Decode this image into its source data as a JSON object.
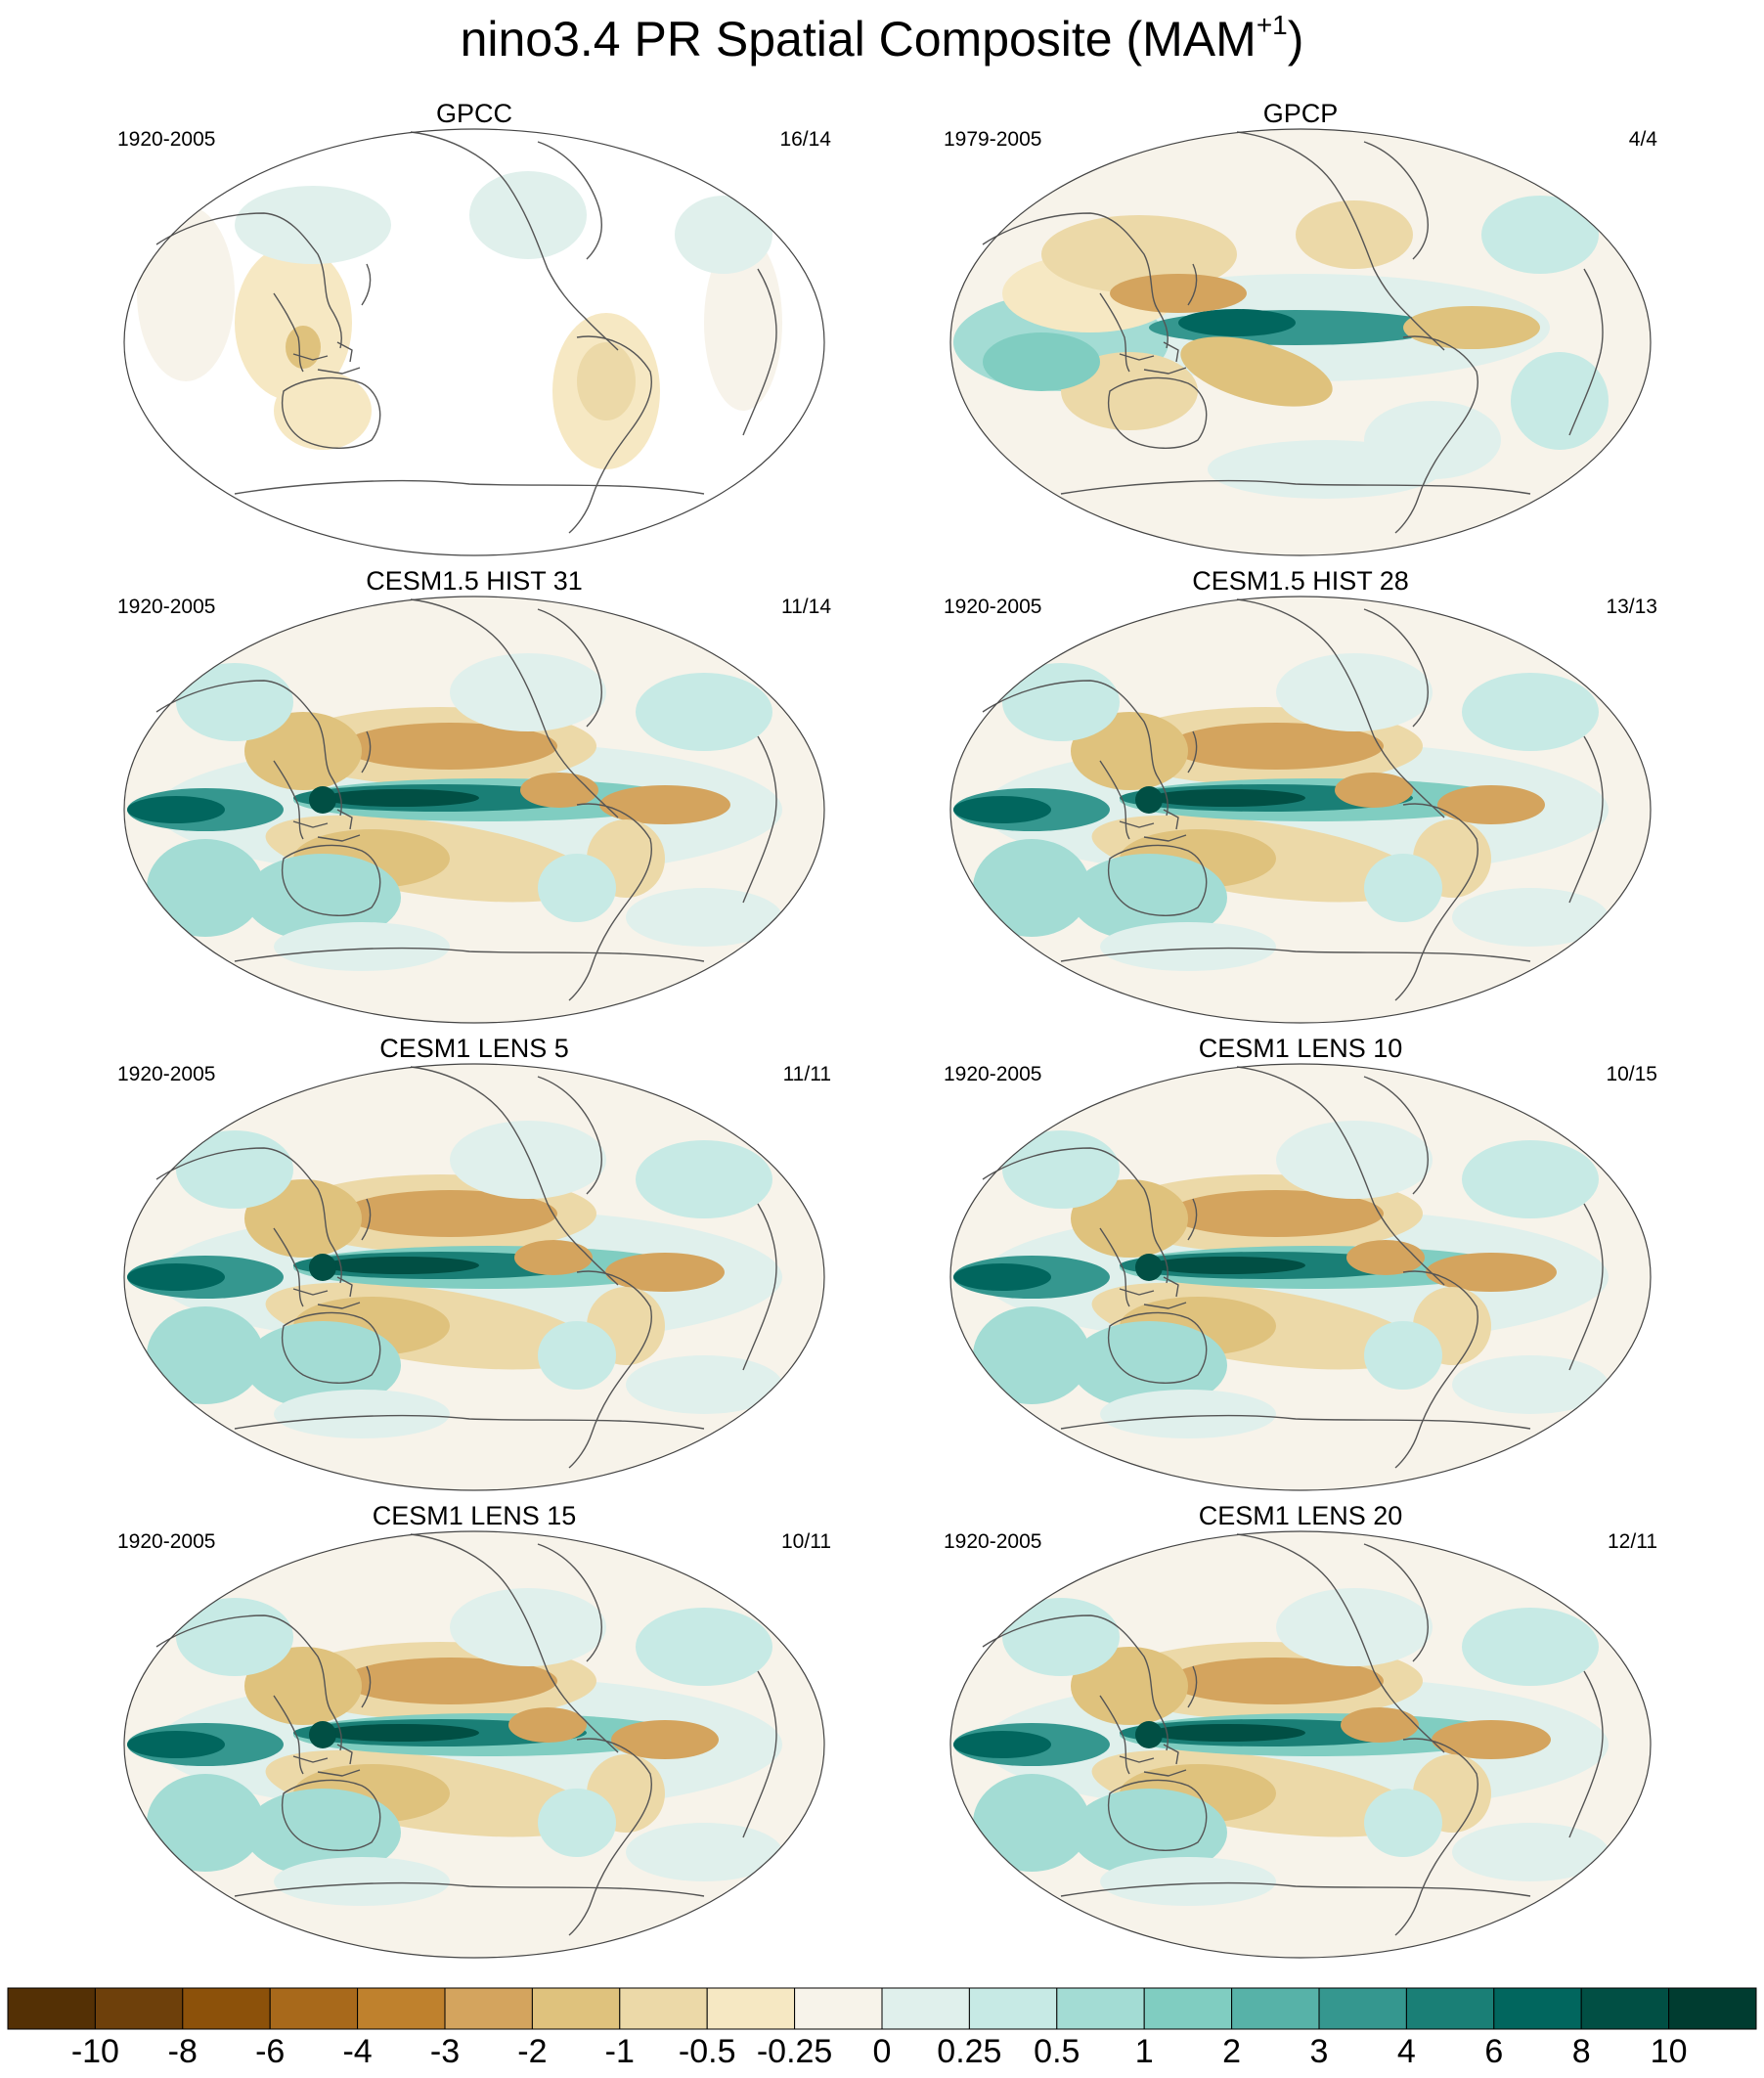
{
  "title": {
    "main": "nino3.4 PR Spatial Composite (MAM",
    "superscript": "+1",
    "close": ")"
  },
  "panels": [
    {
      "title": "GPCC",
      "period": "1920-2005",
      "count": "16/14",
      "pattern": "obs_sparse"
    },
    {
      "title": "GPCP",
      "period": "1979-2005",
      "count": "4/4",
      "pattern": "obs_full"
    },
    {
      "title": "CESM1.5 HIST 31",
      "period": "1920-2005",
      "count": "11/14",
      "pattern": "model"
    },
    {
      "title": "CESM1.5 HIST 28",
      "period": "1920-2005",
      "count": "13/13",
      "pattern": "model"
    },
    {
      "title": "CESM1 LENS 5",
      "period": "1920-2005",
      "count": "11/11",
      "pattern": "model"
    },
    {
      "title": "CESM1 LENS 10",
      "period": "1920-2005",
      "count": "10/15",
      "pattern": "model"
    },
    {
      "title": "CESM1 LENS 15",
      "period": "1920-2005",
      "count": "10/11",
      "pattern": "model"
    },
    {
      "title": "CESM1 LENS 20",
      "period": "1920-2005",
      "count": "12/11",
      "pattern": "model"
    }
  ],
  "colorbar": {
    "colors": [
      "#543005",
      "#6e400b",
      "#8c510a",
      "#a8691b",
      "#bf812d",
      "#d4a45e",
      "#dfc27d",
      "#ecd9a8",
      "#f6e8c3",
      "#f7f3ea",
      "#e0f0ec",
      "#c7eae5",
      "#a3dcd4",
      "#80cdc1",
      "#57b2a8",
      "#35978f",
      "#1a7f76",
      "#01665e",
      "#014f44",
      "#003c30"
    ],
    "labels": [
      "-10",
      "-8",
      "-6",
      "-4",
      "-3",
      "-2",
      "-1",
      "-0.5",
      "-0.25",
      "0",
      "0.25",
      "0.5",
      "1",
      "2",
      "3",
      "4",
      "6",
      "8",
      "10"
    ]
  }
}
